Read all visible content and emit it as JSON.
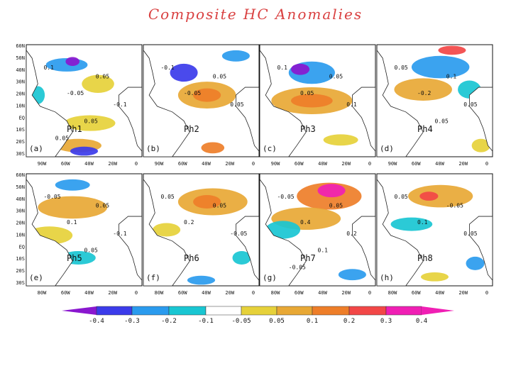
{
  "title": "Composite HC Anomalies",
  "colors": {
    "levels": [
      "#8a17cf",
      "#3b3bea",
      "#2a9bee",
      "#19c6d2",
      "#ffffff",
      "#e6d13a",
      "#e8a835",
      "#ee7e29",
      "#f24747",
      "#f01fb4"
    ],
    "land": "#ffffff",
    "coast": "#222222"
  },
  "chart_data": {
    "type": "heatmap",
    "title": "Composite HC Anomalies",
    "layout": "2x4 panel maps",
    "colorbar": {
      "tick_labels": [
        "-0.4",
        "-0.3",
        "-0.2",
        "-0.1",
        "-0.05",
        "0.05",
        "0.1",
        "0.2",
        "0.3",
        "0.4"
      ],
      "levels": [
        -0.4,
        -0.3,
        -0.2,
        -0.1,
        -0.05,
        0.05,
        0.1,
        0.2,
        0.3,
        0.4
      ],
      "extend": "both"
    },
    "lat_ticks": [
      "60N",
      "50N",
      "40N",
      "30N",
      "20N",
      "10N",
      "EQ",
      "10S",
      "20S",
      "30S"
    ],
    "lon_ticks_row1": [
      "90W",
      "60W",
      "40W",
      "20W",
      "0"
    ],
    "lon_ticks_row2": [
      "80W",
      "60W",
      "40W",
      "20W",
      "0"
    ],
    "panels": [
      {
        "id": "a",
        "letter": "(a)",
        "phase": "Ph1",
        "labels": [
          "0.1",
          "-0.05",
          "0.05",
          "-0.1",
          "0.05",
          "0.05"
        ]
      },
      {
        "id": "b",
        "letter": "(b)",
        "phase": "Ph2",
        "labels": [
          "-0.1",
          "-0.05",
          "0.05",
          "0.05"
        ]
      },
      {
        "id": "c",
        "letter": "(c)",
        "phase": "Ph3",
        "labels": [
          "0.1",
          "0.05",
          "0.05",
          "0.1"
        ]
      },
      {
        "id": "d",
        "letter": "(d)",
        "phase": "Ph4",
        "labels": [
          "0.05",
          "-0.2",
          "0.1",
          "0.05",
          "0.05"
        ]
      },
      {
        "id": "e",
        "letter": "(e)",
        "phase": "Ph5",
        "labels": [
          "-0.05",
          "0.1",
          "0.05",
          "-0.1",
          "0.05"
        ]
      },
      {
        "id": "f",
        "letter": "(f)",
        "phase": "Ph6",
        "labels": [
          "0.05",
          "0.2",
          "0.05",
          "-0.05"
        ]
      },
      {
        "id": "g",
        "letter": "(g)",
        "phase": "Ph7",
        "labels": [
          "-0.05",
          "0.4",
          "0.05",
          "0.2",
          "0.1",
          "-0.05"
        ]
      },
      {
        "id": "h",
        "letter": "(h)",
        "phase": "Ph8",
        "labels": [
          "0.05",
          "0.1",
          "-0.05",
          "0.05"
        ]
      }
    ]
  }
}
